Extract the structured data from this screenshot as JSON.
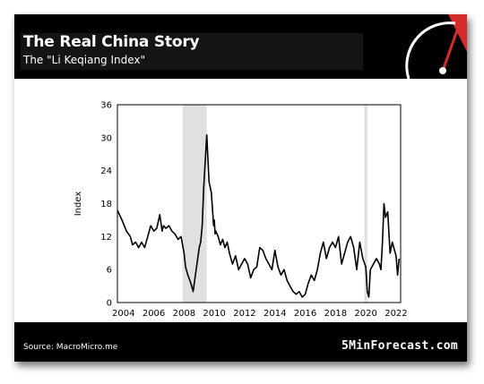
{
  "header": {
    "title": "The Real China Story",
    "subtitle": "The \"Li Keqiang Index\""
  },
  "footer": {
    "source": "Source: MacroMicro.me",
    "brand": "5MinForecast.com"
  },
  "colors": {
    "background": "#000000",
    "line": "#000000",
    "recession_shade": "#e0e0e0",
    "logo_accent": "#d62b2b"
  },
  "chart_data": {
    "type": "line",
    "title": "",
    "xlabel": "",
    "ylabel": "Index",
    "ylim": [
      0,
      36
    ],
    "xlim": [
      2003.6,
      2022.3
    ],
    "yticks": [
      0,
      6,
      12,
      18,
      24,
      30,
      36
    ],
    "xticks": [
      2004,
      2006,
      2008,
      2010,
      2012,
      2014,
      2016,
      2018,
      2020,
      2022
    ],
    "grid": false,
    "shaded_periods": [
      [
        2007.9,
        2009.5
      ],
      [
        2019.9,
        2020.1
      ]
    ],
    "series": [
      {
        "name": "",
        "x": [
          2003.6,
          2003.9,
          2004.2,
          2004.45,
          2004.6,
          2004.8,
          2005.0,
          2005.2,
          2005.4,
          2005.6,
          2005.8,
          2006.0,
          2006.2,
          2006.4,
          2006.55,
          2006.65,
          2006.8,
          2007.0,
          2007.2,
          2007.4,
          2007.6,
          2007.8,
          2008.0,
          2008.1,
          2008.25,
          2008.45,
          2008.6,
          2008.75,
          2008.9,
          2009.0,
          2009.1,
          2009.2,
          2009.3,
          2009.5,
          2009.65,
          2009.8,
          2009.9,
          2009.95,
          2010.0,
          2010.05,
          2010.1,
          2010.25,
          2010.4,
          2010.55,
          2010.7,
          2010.85,
          2011.0,
          2011.2,
          2011.4,
          2011.6,
          2011.8,
          2012.0,
          2012.2,
          2012.4,
          2012.6,
          2012.8,
          2013.0,
          2013.2,
          2013.4,
          2013.6,
          2013.8,
          2014.0,
          2014.2,
          2014.4,
          2014.6,
          2014.8,
          2015.0,
          2015.2,
          2015.4,
          2015.6,
          2015.8,
          2016.0,
          2016.2,
          2016.4,
          2016.6,
          2016.8,
          2017.0,
          2017.2,
          2017.4,
          2017.6,
          2017.8,
          2018.0,
          2018.2,
          2018.4,
          2018.6,
          2018.8,
          2019.0,
          2019.2,
          2019.4,
          2019.6,
          2019.8,
          2020.0,
          2020.1,
          2020.2,
          2020.3,
          2020.5,
          2020.7,
          2020.9,
          2021.0,
          2021.1,
          2021.2,
          2021.3,
          2021.45,
          2021.6,
          2021.75,
          2021.9,
          2022.0,
          2022.1,
          2022.2
        ],
        "values": [
          16.8,
          15,
          13,
          12,
          10.5,
          11,
          10,
          11,
          10,
          12,
          14,
          13,
          13.5,
          16,
          13,
          14,
          13.5,
          14,
          13,
          12.5,
          11.5,
          12,
          9,
          6.5,
          5,
          3.5,
          2,
          5,
          8,
          10,
          11,
          14,
          21,
          30.5,
          22,
          20,
          16,
          14,
          15,
          12.5,
          13,
          12,
          10.5,
          11.5,
          10,
          11,
          9,
          7,
          8.5,
          6,
          7,
          8,
          7,
          4.5,
          6,
          6.5,
          10,
          9.5,
          8,
          7,
          6,
          9.5,
          6.5,
          5,
          6,
          4,
          3,
          2,
          1.5,
          2,
          1,
          1.5,
          3.5,
          5,
          4,
          6,
          9,
          11,
          8,
          10,
          11,
          10,
          12,
          7,
          9,
          11,
          12,
          10,
          6,
          11,
          8,
          6.5,
          2,
          1,
          6,
          7,
          8,
          7,
          6,
          11,
          18,
          15.5,
          16.5,
          9,
          11,
          9.5,
          8.5,
          5,
          8
        ]
      }
    ]
  }
}
